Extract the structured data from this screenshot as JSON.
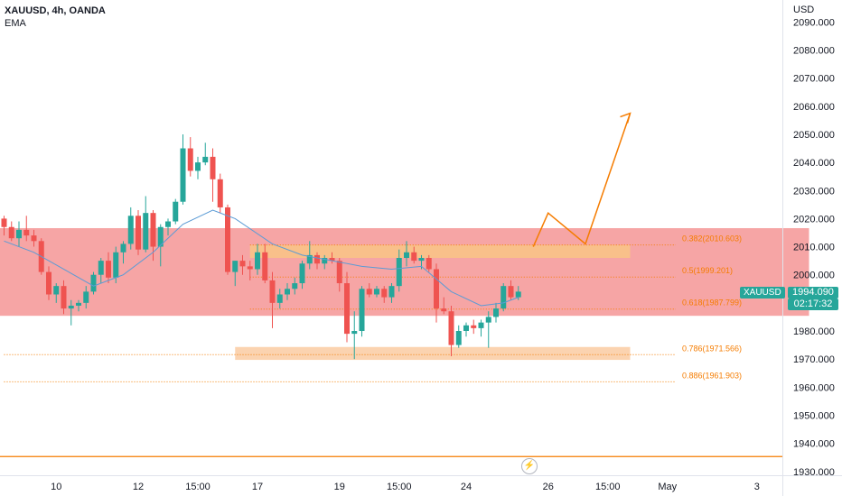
{
  "header": {
    "symbol": "XAUUSD, 4h, OANDA",
    "indicator": "EMA"
  },
  "price_axis": {
    "currency": "USD",
    "current_symbol": "XAUUSD",
    "current_price": "1994.090",
    "countdown": "02:17:32"
  },
  "logo_icon": "tradingview-bolt-icon",
  "colors": {
    "up": "#26a69a",
    "down": "#ef5350",
    "zone": "#f6a5a5",
    "orange": "#f57c00",
    "ema": "#5b9bd5"
  },
  "chart_data": {
    "type": "candlestick",
    "title": "XAUUSD, 4h, OANDA",
    "ylim": [
      1930,
      2095
    ],
    "yticks": [
      1930,
      1940,
      1950,
      1960,
      1970,
      1980,
      1990,
      2000,
      2010,
      2020,
      2030,
      2040,
      2050,
      2060,
      2070,
      2080,
      2090
    ],
    "x_ticks": [
      {
        "label": "10",
        "bar": 7
      },
      {
        "label": "12",
        "bar": 18
      },
      {
        "label": "15:00",
        "bar": 26
      },
      {
        "label": "17",
        "bar": 34
      },
      {
        "label": "19",
        "bar": 45
      },
      {
        "label": "15:00",
        "bar": 53
      },
      {
        "label": "24",
        "bar": 62
      },
      {
        "label": "26",
        "bar": 73
      },
      {
        "label": "15:00",
        "bar": 81
      },
      {
        "label": "May",
        "bar": 89
      },
      {
        "label": "3",
        "bar": 101
      }
    ],
    "candles": [
      [
        2020,
        2021,
        2014,
        2017
      ],
      [
        2017,
        2019,
        2012,
        2013
      ],
      [
        2013,
        2019,
        2010,
        2016
      ],
      [
        2016,
        2021,
        2012,
        2014
      ],
      [
        2014,
        2016,
        2010,
        2012
      ],
      [
        2012,
        2013,
        2000,
        2001
      ],
      [
        2001,
        2003,
        1991,
        1993
      ],
      [
        1993,
        1997,
        1990,
        1996
      ],
      [
        1996,
        1998,
        1986,
        1988
      ],
      [
        1988,
        1991,
        1982,
        1989
      ],
      [
        1989,
        1991,
        1987,
        1990
      ],
      [
        1990,
        1996,
        1988,
        1994
      ],
      [
        1994,
        2001,
        1993,
        2000
      ],
      [
        2000,
        2006,
        1997,
        2005
      ],
      [
        2005,
        2008,
        1997,
        1999
      ],
      [
        1999,
        2010,
        1997,
        2008
      ],
      [
        2008,
        2012,
        2004,
        2011
      ],
      [
        2011,
        2024,
        2009,
        2021
      ],
      [
        2021,
        2023,
        2007,
        2009
      ],
      [
        2009,
        2028,
        2008,
        2022
      ],
      [
        2022,
        2023,
        2005,
        2010
      ],
      [
        2010,
        2018,
        2003,
        2017
      ],
      [
        2017,
        2020,
        2014,
        2019
      ],
      [
        2019,
        2027,
        2018,
        2026
      ],
      [
        2026,
        2050,
        2025,
        2045
      ],
      [
        2045,
        2049,
        2035,
        2037
      ],
      [
        2037,
        2042,
        2034,
        2040
      ],
      [
        2040,
        2047,
        2039,
        2042
      ],
      [
        2042,
        2045,
        2026,
        2034
      ],
      [
        2034,
        2036,
        2022,
        2024
      ],
      [
        2024,
        2025,
        2000,
        2001
      ],
      [
        2001,
        2005,
        1996,
        2005
      ],
      [
        2005,
        2007,
        2000,
        2003
      ],
      [
        2003,
        2005,
        1998,
        2002
      ],
      [
        2002,
        2011,
        2000,
        2008
      ],
      [
        2008,
        2011,
        1997,
        1998
      ],
      [
        1998,
        2001,
        1981,
        1990
      ],
      [
        1990,
        1995,
        1988,
        1993
      ],
      [
        1993,
        1997,
        1991,
        1995
      ],
      [
        1995,
        1999,
        1993,
        1997
      ],
      [
        1997,
        2005,
        1995,
        2004
      ],
      [
        2004,
        2012,
        2002,
        2007
      ],
      [
        2007,
        2008,
        2002,
        2004
      ],
      [
        2004,
        2007,
        2002,
        2006
      ],
      [
        2006,
        2008,
        2004,
        2005
      ],
      [
        2005,
        2006,
        1994,
        1997
      ],
      [
        1997,
        2001,
        1976,
        1979
      ],
      [
        1979,
        1987,
        1970,
        1980
      ],
      [
        1980,
        1996,
        1978,
        1995
      ],
      [
        1995,
        1997,
        1992,
        1993
      ],
      [
        1993,
        1996,
        1992,
        1995
      ],
      [
        1995,
        1996,
        1990,
        1992
      ],
      [
        1992,
        1997,
        1990,
        1996
      ],
      [
        1996,
        2009,
        1994,
        2006
      ],
      [
        2006,
        2012,
        2003,
        2008
      ],
      [
        2008,
        2010,
        2004,
        2005
      ],
      [
        2005,
        2007,
        2002,
        2006
      ],
      [
        2006,
        2007,
        2001,
        2002
      ],
      [
        2002,
        2004,
        1983,
        1988
      ],
      [
        1988,
        1992,
        1986,
        1987
      ],
      [
        1987,
        1989,
        1971,
        1975
      ],
      [
        1975,
        1982,
        1974,
        1980
      ],
      [
        1980,
        1983,
        1978,
        1982
      ],
      [
        1982,
        1984,
        1979,
        1981
      ],
      [
        1981,
        1984,
        1978,
        1983
      ],
      [
        1983,
        1987,
        1974,
        1985
      ],
      [
        1985,
        1990,
        1983,
        1988
      ],
      [
        1988,
        1997,
        1987,
        1996
      ],
      [
        1996,
        1998,
        1991,
        1992
      ],
      [
        1992,
        1996,
        1991,
        1994
      ]
    ],
    "ema": [
      [
        0,
        2012
      ],
      [
        4,
        2008
      ],
      [
        8,
        2002
      ],
      [
        12,
        1996
      ],
      [
        16,
        2000
      ],
      [
        20,
        2008
      ],
      [
        24,
        2018
      ],
      [
        28,
        2023
      ],
      [
        31,
        2020
      ],
      [
        36,
        2011
      ],
      [
        40,
        2007
      ],
      [
        44,
        2005
      ],
      [
        48,
        2003
      ],
      [
        52,
        2002
      ],
      [
        56,
        2003
      ],
      [
        60,
        1994
      ],
      [
        64,
        1989
      ],
      [
        67,
        1990
      ],
      [
        69,
        1992
      ]
    ],
    "fib_levels": [
      {
        "label": "0.382(2010.603)",
        "price": 2010.603,
        "color": "#f57c00",
        "x_start": 33
      },
      {
        "label": "0.5(1999.201)",
        "price": 1999.201,
        "color": "#f57c00",
        "x_start": 33
      },
      {
        "label": "0.618(1987.799)",
        "price": 1987.799,
        "color": "#f57c00",
        "x_start": 33
      },
      {
        "label": "0.786(1971.566)",
        "price": 1971.566,
        "color": "#f57c00",
        "x_start": 0
      },
      {
        "label": "0.886(1961.903)",
        "price": 1961.903,
        "color": "#f57c00",
        "x_start": 0
      }
    ],
    "zones": [
      {
        "p1": 2016.6,
        "p2": 1985.4,
        "color": "#f6a5a5",
        "x1": -1,
        "x2": 108
      },
      {
        "p1": 2010.6,
        "p2": 2006.0,
        "color": "#f9c08a",
        "x1": 33,
        "x2": 84
      },
      {
        "p1": 1974.3,
        "p2": 1969.7,
        "color": "#fbd3b0",
        "x1": 31,
        "x2": 84
      }
    ],
    "hline": {
      "price": 1935.3,
      "color": "#f57c00"
    },
    "projection": [
      [
        71,
        2010.0
      ],
      [
        73,
        2022.0
      ],
      [
        78,
        2011.0
      ],
      [
        84,
        2057.5
      ]
    ]
  }
}
